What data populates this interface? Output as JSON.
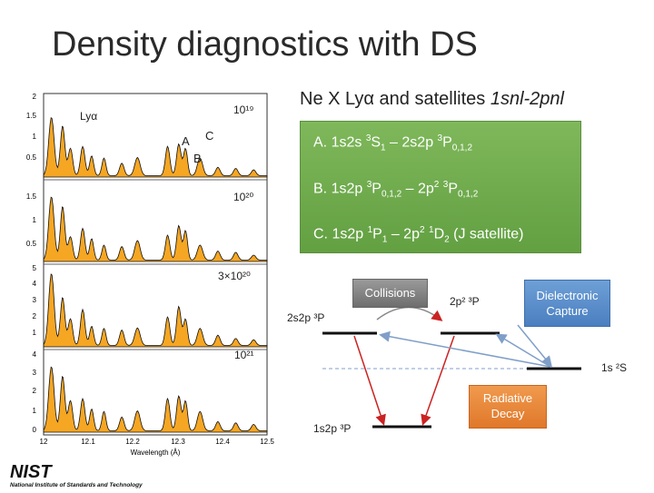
{
  "slide": {
    "title": "Density diagnostics with DS"
  },
  "spectra_plot": {
    "y_ticks_panel1": [
      "2",
      "1.5",
      "1",
      "0.5"
    ],
    "y_ticks_panel2": [
      "1.5",
      "1",
      "0.5"
    ],
    "y_ticks_panel3": [
      "5",
      "4",
      "3",
      "2",
      "1"
    ],
    "y_ticks_panel4": [
      "4",
      "3",
      "2",
      "1",
      "0"
    ],
    "x_ticks": [
      "12",
      "12.1",
      "12.2",
      "12.3",
      "12.4",
      "12.5"
    ],
    "x_label": "Wavelength (Å)",
    "peak_label_lya": "Lyα",
    "peak_label_a": "A",
    "peak_label_b": "B",
    "peak_label_c": "C",
    "density_1": "10¹⁹",
    "density_2": "10²⁰",
    "density_3": "3×10²⁰",
    "density_4": "10²¹",
    "fill_color": "#f5a623"
  },
  "satellites": {
    "heading_prefix": "Ne X Lyα and satellites ",
    "heading_italic": "1snl-2pnl",
    "line_a": {
      "prefix": "A. 1s2s ",
      "t1": "3",
      "t2": "S",
      "t3": "1",
      "t4": " – 2s2p ",
      "t5": "3",
      "t6": "P",
      "t7": "0,1,2"
    },
    "line_b": {
      "prefix": "B. 1s2p ",
      "t1": "3",
      "t2": "P",
      "t3": "0,1,2",
      "t4": " – 2p",
      "t5": "2",
      "t6": " ",
      "t7": "3",
      "t8": "P",
      "t9": "0,1,2"
    },
    "line_c": {
      "prefix": "C. 1s2p ",
      "t1": "1",
      "t2": "P",
      "t3": "1",
      "t4": " – 2p",
      "t5": "2",
      "t6": " ",
      "t7": "1",
      "t8": "D",
      "t9": "2",
      "t10": " (J satellite)"
    },
    "box_color": "#6aa84f"
  },
  "level_diagram": {
    "collisions_label": "Collisions",
    "dielectronic_label": "Dielectronic Capture",
    "radiative_label": "Radiative Decay",
    "level_2s2p": "2s2p ³P",
    "level_2p2": "2p² ³P",
    "level_1s": "1s ²S",
    "level_1s2p": "1s2p ³P",
    "arrow_color_red": "#cc2222",
    "arrow_color_blue": "#7f9fc8"
  },
  "logo": {
    "text": "NIST",
    "subtitle": "National Institute of Standards and Technology"
  }
}
